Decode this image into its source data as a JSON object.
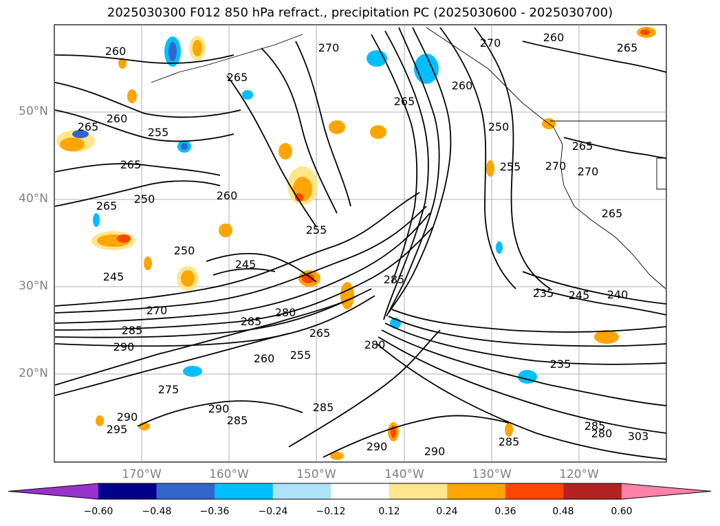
{
  "title": "2025030300 F012 850 hPa refract., precipitation PC (2025030600 - 2025030700)",
  "map": {
    "lat_labels": [
      "50°N",
      "40°N",
      "30°N",
      "20°N"
    ],
    "lon_labels": [
      "170°W",
      "160°W",
      "150°W",
      "140°W",
      "130°W",
      "120°W"
    ],
    "contour_labels": [
      "260",
      "265",
      "270",
      "265",
      "255",
      "260",
      "265",
      "265",
      "250",
      "260",
      "245",
      "255",
      "250",
      "245",
      "285",
      "285",
      "280",
      "285",
      "290",
      "275",
      "290",
      "295",
      "290",
      "265",
      "260",
      "255",
      "280",
      "285",
      "290",
      "290",
      "270",
      "285",
      "235",
      "245",
      "240",
      "235",
      "285",
      "280",
      "285",
      "303",
      "265",
      "270",
      "270",
      "265",
      "265",
      "260",
      "250",
      "260",
      "265",
      "270",
      "255"
    ]
  },
  "colorbar": {
    "ticks": [
      "−0.60",
      "−0.48",
      "−0.36",
      "−0.24",
      "−0.12",
      "0.12",
      "0.24",
      "0.36",
      "0.48",
      "0.60"
    ],
    "colors": [
      "#9932cc",
      "#00008b",
      "#3366cc",
      "#00bfff",
      "#aee2fa",
      "#ffffff",
      "#ffe68c",
      "#ffa500",
      "#ff4500",
      "#b22222",
      "#ff82a9"
    ],
    "extend_low": "#9932cc",
    "extend_high": "#ff82a9"
  }
}
